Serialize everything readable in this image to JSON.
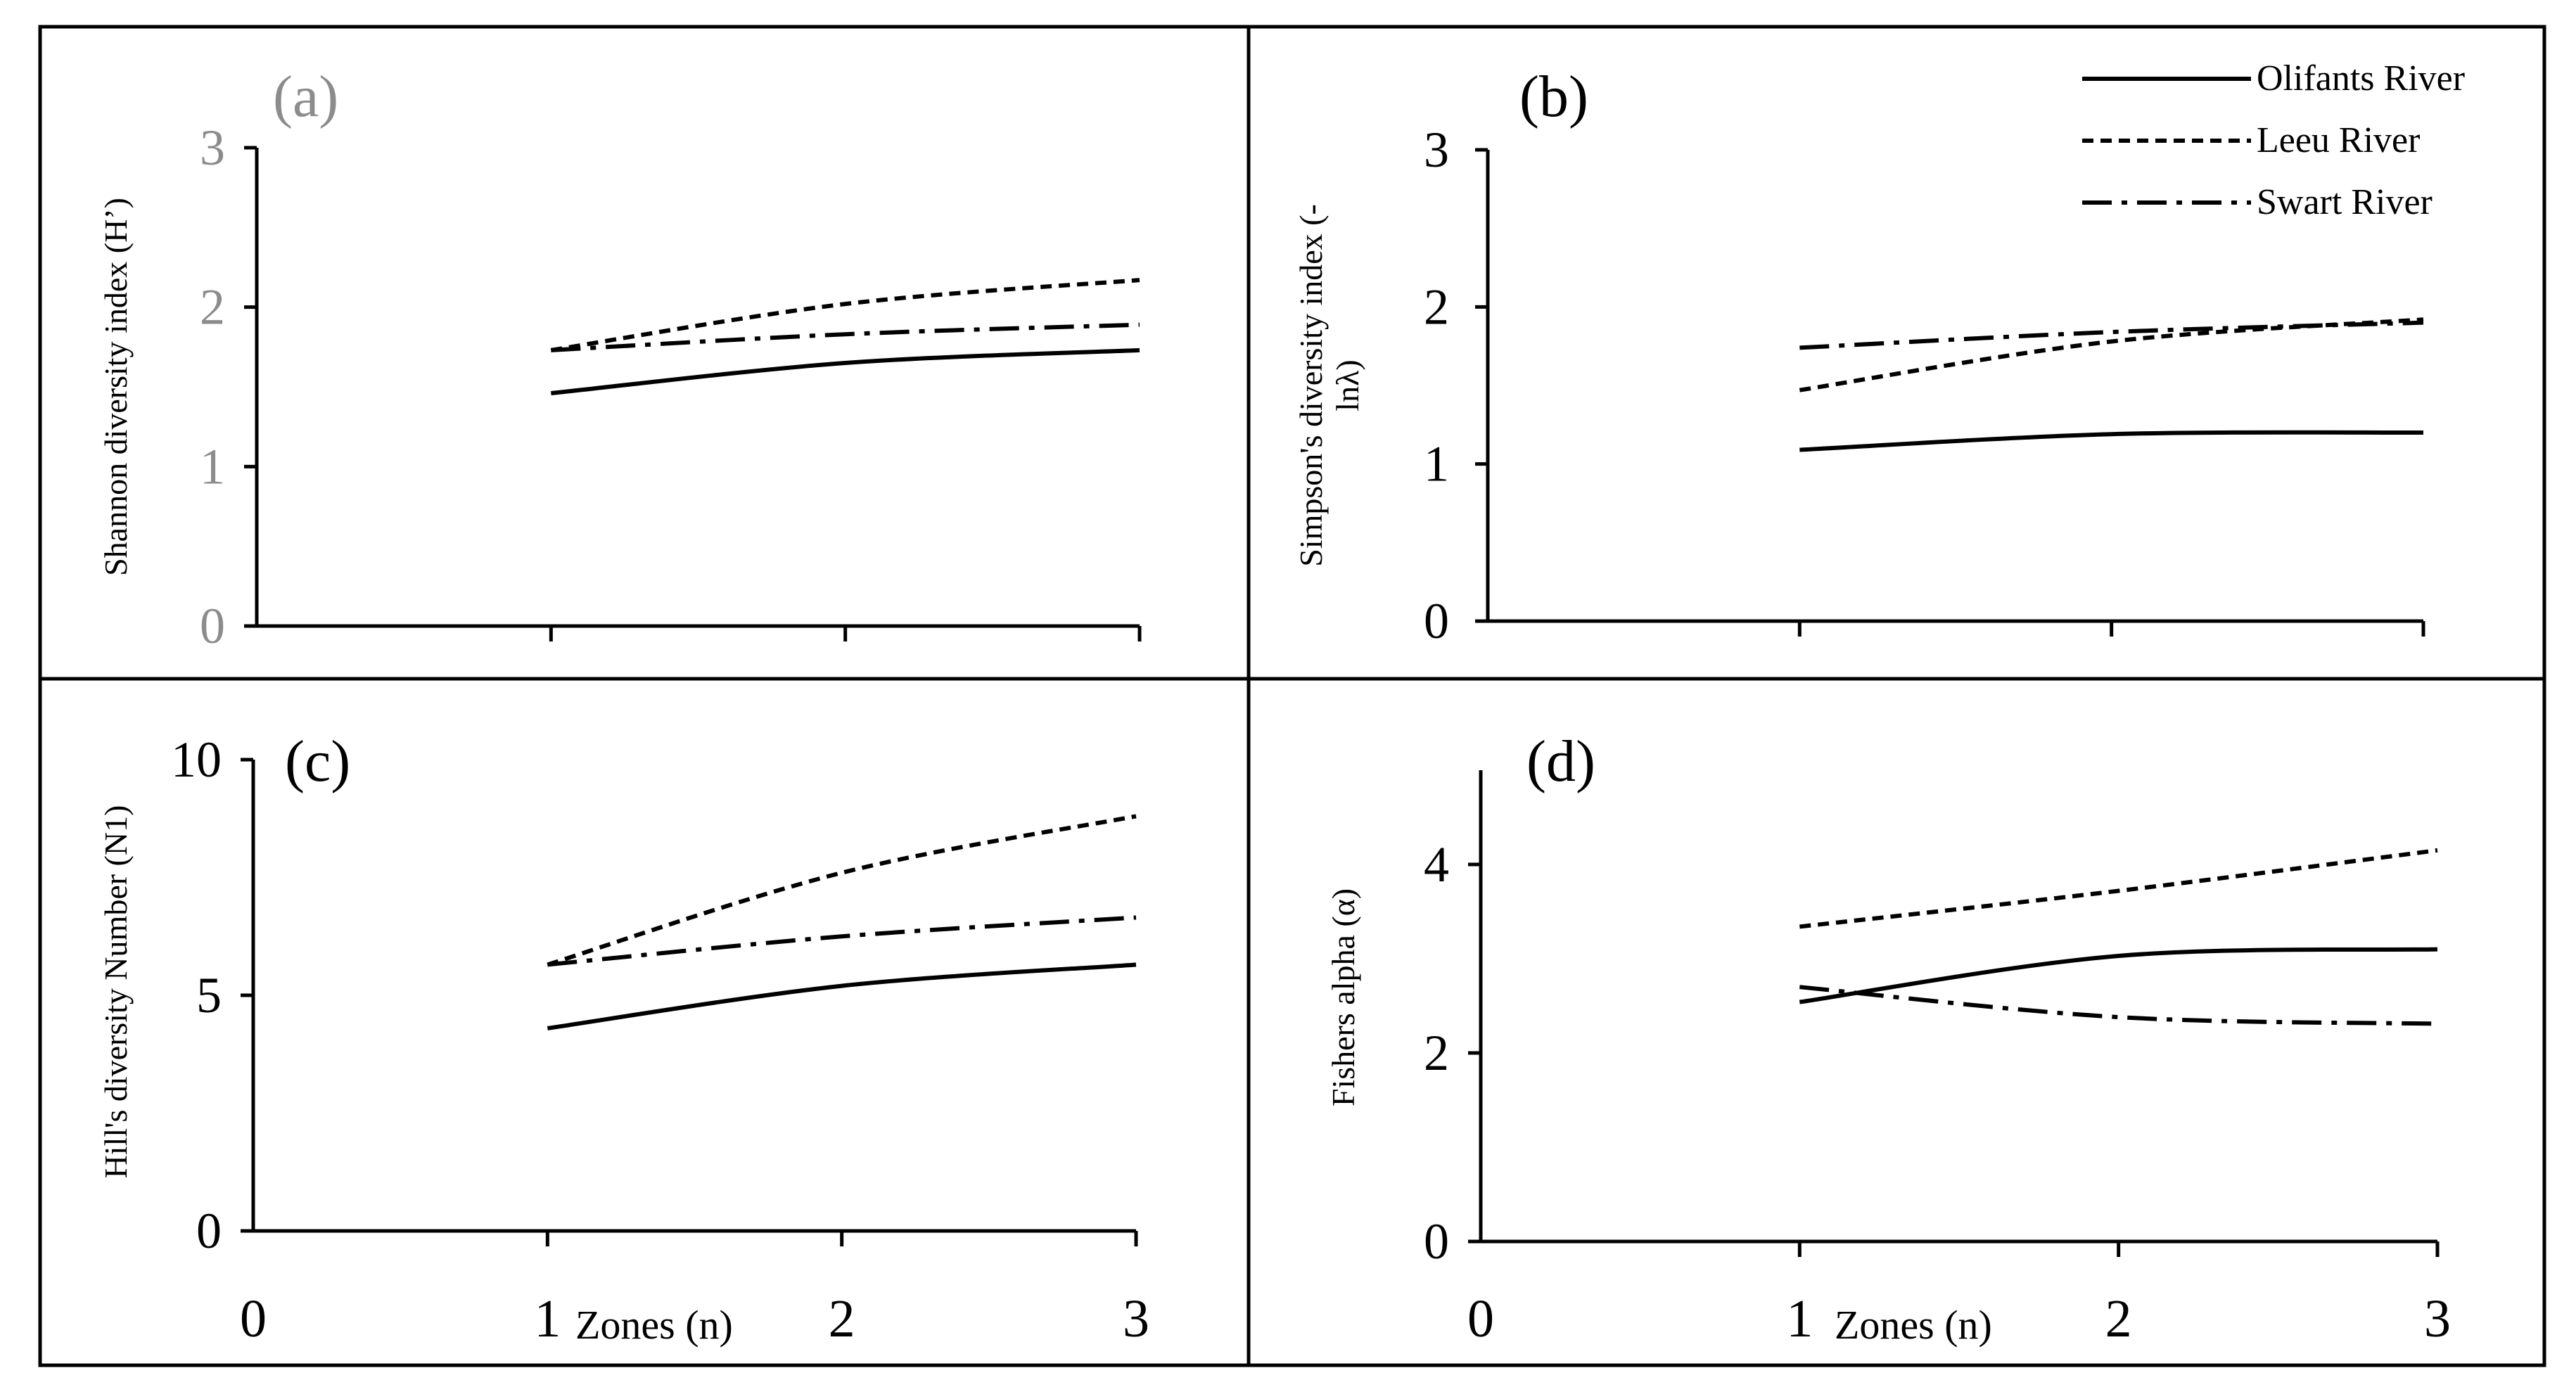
{
  "chart_data": [
    {
      "type": "line",
      "panel_label": "(a)",
      "ylabel": "Shannon diversity index (H’)",
      "xlabel": "",
      "xlim": [
        0,
        3
      ],
      "ylim": [
        0,
        3
      ],
      "yticks": [
        0,
        1,
        2,
        3
      ],
      "ytick_labels": [
        "0",
        "1",
        "2",
        "3"
      ],
      "xticks": [
        1,
        2,
        3
      ],
      "xtick_labels": [],
      "x": [
        1,
        2,
        3
      ],
      "series": [
        {
          "name": "Olifants River",
          "values": [
            1.46,
            1.65,
            1.73
          ]
        },
        {
          "name": "Leeu River",
          "values": [
            1.73,
            2.02,
            2.17
          ]
        },
        {
          "name": "Swart River",
          "values": [
            1.73,
            1.83,
            1.89
          ]
        }
      ]
    },
    {
      "type": "line",
      "panel_label": "(b)",
      "ylabel": "Simpson's diversity index (-lnλ)",
      "xlabel": "",
      "xlim": [
        0,
        3
      ],
      "ylim": [
        0,
        3
      ],
      "yticks": [
        0,
        1,
        2,
        3
      ],
      "ytick_labels": [
        "0",
        "1",
        "2",
        "3"
      ],
      "xticks": [
        1,
        2,
        3
      ],
      "xtick_labels": [],
      "x": [
        1,
        2,
        3
      ],
      "series": [
        {
          "name": "Olifants River",
          "values": [
            1.09,
            1.19,
            1.2
          ]
        },
        {
          "name": "Leeu River",
          "values": [
            1.47,
            1.78,
            1.92
          ]
        },
        {
          "name": "Swart River",
          "values": [
            1.74,
            1.84,
            1.9
          ]
        }
      ]
    },
    {
      "type": "line",
      "panel_label": "(c)",
      "ylabel": "Hill's diversity Number (N1)",
      "xlabel": "Zones (n)",
      "xlim": [
        0,
        3
      ],
      "ylim": [
        0,
        10
      ],
      "yticks": [
        0,
        5,
        10
      ],
      "ytick_labels": [
        "0",
        "5",
        "10"
      ],
      "xticks": [
        0,
        1,
        2,
        3
      ],
      "xtick_labels": [
        "0",
        "1",
        "2",
        "3"
      ],
      "x": [
        1,
        2,
        3
      ],
      "series": [
        {
          "name": "Olifants River",
          "values": [
            4.3,
            5.2,
            5.65
          ]
        },
        {
          "name": "Leeu River",
          "values": [
            5.65,
            7.6,
            8.8
          ]
        },
        {
          "name": "Swart River",
          "values": [
            5.65,
            6.25,
            6.65
          ]
        }
      ]
    },
    {
      "type": "line",
      "panel_label": "(d)",
      "ylabel": "Fishers alpha (α)",
      "xlabel": "Zones (n)",
      "xlim": [
        0,
        3
      ],
      "ylim": [
        0,
        5
      ],
      "yticks": [
        0,
        2,
        4
      ],
      "ytick_labels": [
        "0",
        "2",
        "4"
      ],
      "xticks": [
        0,
        1,
        2,
        3
      ],
      "xtick_labels": [
        "0",
        "1",
        "2",
        "3"
      ],
      "x": [
        1,
        2,
        3
      ],
      "series": [
        {
          "name": "Olifants River",
          "values": [
            2.54,
            3.03,
            3.1
          ]
        },
        {
          "name": "Leeu River",
          "values": [
            3.34,
            3.72,
            4.15
          ]
        },
        {
          "name": "Swart River",
          "values": [
            2.7,
            2.38,
            2.31
          ]
        }
      ]
    }
  ],
  "legend": {
    "position": "top-right",
    "entries": [
      {
        "name": "Olifants River",
        "style": "solid"
      },
      {
        "name": "Leeu River",
        "style": "dotted"
      },
      {
        "name": "Swart River",
        "style": "dash-dot"
      }
    ]
  },
  "colors": {
    "line": "#000000",
    "panel_label_a": "#8c8c8c",
    "tick_labels_a": "#8c8c8c",
    "text": "#000000"
  }
}
